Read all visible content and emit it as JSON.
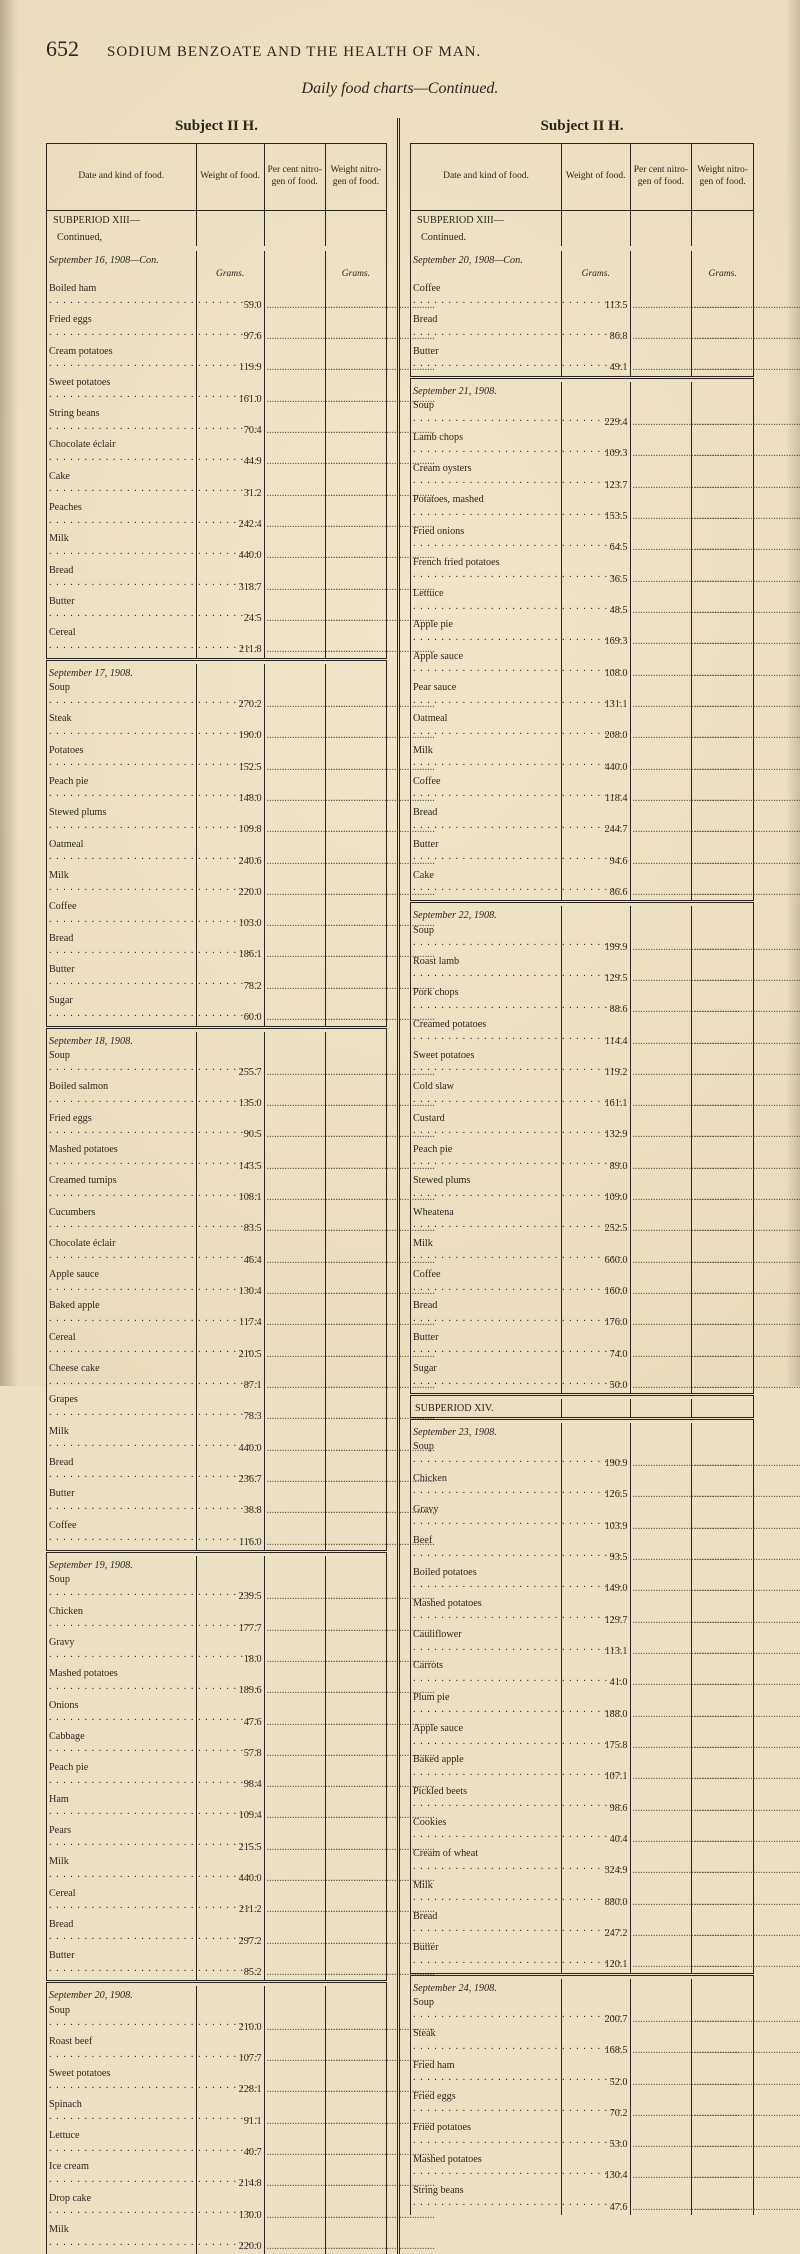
{
  "page_number": "652",
  "running_title": "SODIUM BENZOATE AND THE HEALTH OF MAN.",
  "caption": "Daily food charts—Continued.",
  "subject_left": "Subject II H.",
  "subject_right": "Subject II H.",
  "col_headers": {
    "date": "Date and kind of food.",
    "weight": "Weight of food.",
    "percent": "Per cent nitro- gen of food.",
    "weightN": "Weight nitro- gen of food."
  },
  "units_label": "Grams.",
  "subperiod_label": "SUBPERIOD XIII— Continued,",
  "subperiod_label_right": "SUBPERIOD XIII— Continued.",
  "subperiod14": "SUBPERIOD XIV.",
  "left_sections": [
    {
      "title": "September 16, 1908—Con.",
      "units": true,
      "rows": [
        [
          "Boiled ham",
          "59.0"
        ],
        [
          "Fried eggs",
          "97.6"
        ],
        [
          "Cream potatoes",
          "119.9"
        ],
        [
          "Sweet potatoes",
          "161.0"
        ],
        [
          "String beans",
          "70.4"
        ],
        [
          "Chocolate éclair",
          "44.9"
        ],
        [
          "Cake",
          "31.2"
        ],
        [
          "Peaches",
          "242.4"
        ],
        [
          "Milk",
          "440.0"
        ],
        [
          "Bread",
          "318.7"
        ],
        [
          "Butter",
          "24.5"
        ],
        [
          "Cereal",
          "211.8"
        ]
      ]
    },
    {
      "title": "September 17, 1908.",
      "rows": [
        [
          "Soup",
          "270.2"
        ],
        [
          "Steak",
          "190.0"
        ],
        [
          "Potatoes",
          "152.5"
        ],
        [
          "Peach pie",
          "148.0"
        ],
        [
          "Stewed plums",
          "109.8"
        ],
        [
          "Oatmeal",
          "240.6"
        ],
        [
          "Milk",
          "220.0"
        ],
        [
          "Coffee",
          "103.0"
        ],
        [
          "Bread",
          "186.1"
        ],
        [
          "Butter",
          "78.2"
        ],
        [
          "Sugar",
          "60.0"
        ]
      ]
    },
    {
      "title": "September 18, 1908.",
      "rows": [
        [
          "Soup",
          "255.7"
        ],
        [
          "Boiled salmon",
          "135.0"
        ],
        [
          "Fried eggs",
          "90.5"
        ],
        [
          "Mashed potatoes",
          "143.5"
        ],
        [
          "Creamed turnips",
          "108.1"
        ],
        [
          "Cucumbers",
          "83.5"
        ],
        [
          "Chocolate éclair",
          "46.4"
        ],
        [
          "Apple sauce",
          "130.4"
        ],
        [
          "Baked apple",
          "117.4"
        ],
        [
          "Cereal",
          "210.5"
        ],
        [
          "Cheese cake",
          "87.1"
        ],
        [
          "Grapes",
          "78.3"
        ],
        [
          "Milk",
          "440.0"
        ],
        [
          "Bread",
          "236.7"
        ],
        [
          "Butter",
          "38.8"
        ],
        [
          "Coffee",
          "116.0"
        ]
      ]
    },
    {
      "title": "September 19, 1908.",
      "rows": [
        [
          "Soup",
          "239.5"
        ],
        [
          "Chicken",
          "177.7"
        ],
        [
          "Gravy",
          "18.0"
        ],
        [
          "Mashed potatoes",
          "189.6"
        ],
        [
          "Onions",
          "47.6"
        ],
        [
          "Cabbage",
          "57.8"
        ],
        [
          "Peach pie",
          "98.4"
        ],
        [
          "Ham",
          "109.4"
        ],
        [
          "Pears",
          "215.5"
        ],
        [
          "Milk",
          "440.0"
        ],
        [
          "Cereal",
          "211.2"
        ],
        [
          "Bread",
          "297.2"
        ],
        [
          "Butter",
          "85.2"
        ]
      ]
    },
    {
      "title": "September 20, 1908.",
      "rows": [
        [
          "Soup",
          "210.0"
        ],
        [
          "Roast beef",
          "107.7"
        ],
        [
          "Sweet potatoes",
          "228.1"
        ],
        [
          "Spinach",
          "91.1"
        ],
        [
          "Lettuce",
          "40.7"
        ],
        [
          "Ice cream",
          "214.8"
        ],
        [
          "Drop cake",
          "130.0"
        ],
        [
          "Milk",
          "220.0"
        ]
      ]
    }
  ],
  "right_sections": [
    {
      "title": "September 20, 1908—Con.",
      "units": true,
      "rows": [
        [
          "Coffee",
          "113.5"
        ],
        [
          "Bread",
          "86.8"
        ],
        [
          "Butter",
          "49.1"
        ]
      ]
    },
    {
      "title": "September 21, 1908.",
      "rows": [
        [
          "Soup",
          "229.4"
        ],
        [
          "Lamb chops",
          "109.3"
        ],
        [
          "Cream oysters",
          "123.7"
        ],
        [
          "Potatoes, mashed",
          "153.5"
        ],
        [
          "Fried onions",
          "64.5"
        ],
        [
          "French fried potatoes",
          "36.5"
        ],
        [
          "Lettuce",
          "48.5"
        ],
        [
          "Apple pie",
          "169.3"
        ],
        [
          "Apple sauce",
          "108.0"
        ],
        [
          "Pear sauce",
          "131.1"
        ],
        [
          "Oatmeal",
          "208.0"
        ],
        [
          "Milk",
          "440.0"
        ],
        [
          "Coffee",
          "118.4"
        ],
        [
          "Bread",
          "244.7"
        ],
        [
          "Butter",
          "94.6"
        ],
        [
          "Cake",
          "86.6"
        ]
      ]
    },
    {
      "title": "September 22, 1908.",
      "rows": [
        [
          "Soup",
          "199.9"
        ],
        [
          "Roast lamb",
          "129.5"
        ],
        [
          "Pork chops",
          "88.6"
        ],
        [
          "Creamed potatoes",
          "114.4"
        ],
        [
          "Sweet potatoes",
          "119.2"
        ],
        [
          "Cold slaw",
          "161.1"
        ],
        [
          "Custard",
          "132.9"
        ],
        [
          "Peach pie",
          "89.0"
        ],
        [
          "Stewed plums",
          "109.0"
        ],
        [
          "Wheatena",
          "252.5"
        ],
        [
          "Milk",
          "660.0"
        ],
        [
          "Coffee",
          "160.0"
        ],
        [
          "Bread",
          "176.0"
        ],
        [
          "Butter",
          "74.0"
        ],
        [
          "Sugar",
          "50.0"
        ]
      ]
    },
    {
      "subperiod": true
    },
    {
      "title": "September 23, 1908.",
      "rows": [
        [
          "Soup",
          "190.9"
        ],
        [
          "Chicken",
          "126.5"
        ],
        [
          "Gravy",
          "103.9"
        ],
        [
          "Beef",
          "93.5"
        ],
        [
          "Boiled potatoes",
          "149.0"
        ],
        [
          "Mashed potatoes",
          "129.7"
        ],
        [
          "Cauliflower",
          "113.1"
        ],
        [
          "Carrots",
          "41.0"
        ],
        [
          "Plum pie",
          "188.0"
        ],
        [
          "Apple sauce",
          "175.8"
        ],
        [
          "Baked apple",
          "107.1"
        ],
        [
          "Pickled beets",
          "98.6"
        ],
        [
          "Cookies",
          "40.4"
        ],
        [
          "Cream of wheat",
          "324.9"
        ],
        [
          "Milk",
          "880.0"
        ],
        [
          "Bread",
          "247.2"
        ],
        [
          "Butter",
          "120.1"
        ]
      ]
    },
    {
      "title": "September 24, 1908.",
      "rows": [
        [
          "Soup",
          "200.7"
        ],
        [
          "Steak",
          "168.5"
        ],
        [
          "Fried ham",
          "52.0"
        ],
        [
          "Fried eggs",
          "70.2"
        ],
        [
          "Fried potatoes",
          "53.0"
        ],
        [
          "Mashed potatoes",
          "130.4"
        ],
        [
          "String beans",
          "47.6"
        ]
      ]
    }
  ]
}
